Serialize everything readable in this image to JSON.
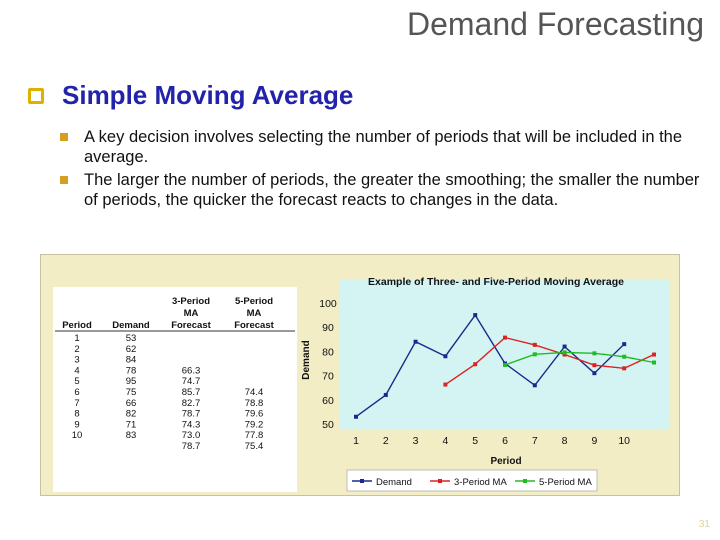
{
  "slide": {
    "title": "Demand Forecasting",
    "heading": "Simple Moving Average",
    "bullets": [
      "A key decision involves selecting the number of periods that will be included in the average.",
      "The larger the number of periods, the greater the smoothing; the smaller the number of periods, the quicker the forecast reacts to changes in the data."
    ],
    "page_number": "31"
  },
  "colors": {
    "heading": "#2222aa",
    "bullet": "#d4a020",
    "demand": "#1a2a8a",
    "ma3": "#dd2222",
    "ma5": "#22bb22"
  },
  "table": {
    "headers": [
      "Period",
      "Demand",
      "3-Period\nMA\nForecast",
      "5-Period\nMA\nForecast"
    ],
    "rows": [
      [
        "1",
        "53",
        "",
        ""
      ],
      [
        "2",
        "62",
        "",
        ""
      ],
      [
        "3",
        "84",
        "",
        ""
      ],
      [
        "4",
        "78",
        "66.3",
        ""
      ],
      [
        "5",
        "95",
        "74.7",
        ""
      ],
      [
        "6",
        "75",
        "85.7",
        "74.4"
      ],
      [
        "7",
        "66",
        "82.7",
        "78.8"
      ],
      [
        "8",
        "82",
        "78.7",
        "79.6"
      ],
      [
        "9",
        "71",
        "74.3",
        "79.2"
      ],
      [
        "10",
        "83",
        "73.0",
        "77.8"
      ],
      [
        "",
        "",
        "78.7",
        "75.4"
      ]
    ]
  },
  "chart_data": {
    "type": "line",
    "title": "Example of Three- and Five-Period Moving Average",
    "xlabel": "Period",
    "ylabel": "Demand",
    "x": [
      1,
      2,
      3,
      4,
      5,
      6,
      7,
      8,
      9,
      10
    ],
    "xticks": [
      "1",
      "2",
      "3",
      "4",
      "5",
      "6",
      "7",
      "8",
      "9",
      "10"
    ],
    "yticks": [
      "50",
      "60",
      "70",
      "80",
      "90",
      "100"
    ],
    "ylim": [
      50,
      100
    ],
    "xlim": [
      1,
      11
    ],
    "grid": false,
    "legend_position": "bottom",
    "series": [
      {
        "name": "Demand",
        "x": [
          1,
          2,
          3,
          4,
          5,
          6,
          7,
          8,
          9,
          10
        ],
        "values": [
          53,
          62,
          84,
          78,
          95,
          75,
          66,
          82,
          71,
          83
        ]
      },
      {
        "name": "3-Period MA",
        "x": [
          4,
          5,
          6,
          7,
          8,
          9,
          10,
          11
        ],
        "values": [
          66.3,
          74.7,
          85.7,
          82.7,
          78.7,
          74.3,
          73.0,
          78.7
        ]
      },
      {
        "name": "5-Period MA",
        "x": [
          6,
          7,
          8,
          9,
          10,
          11
        ],
        "values": [
          74.4,
          78.8,
          79.6,
          79.2,
          77.8,
          75.4
        ]
      }
    ]
  }
}
